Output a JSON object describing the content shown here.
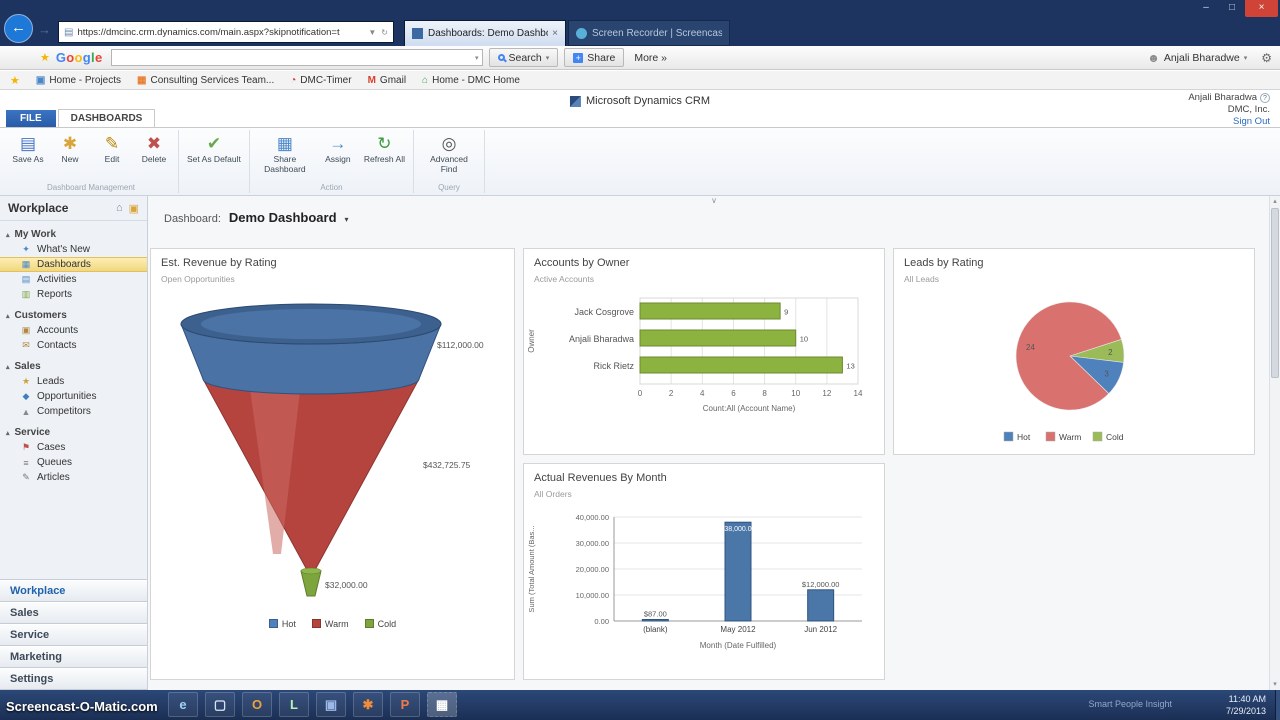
{
  "icons": {
    "back": "←",
    "forward": "→",
    "dropdown": "▼",
    "refresh": "↻",
    "star": "★",
    "caret": "▾",
    "help": "?",
    "avatar": "☻",
    "wrench": "⚙",
    "chevron": "∨",
    "page": "▤",
    "share_plus": "+",
    "home": "⌂",
    "pin": "▣"
  },
  "browser": {
    "url": "https://dmcinc.crm.dynamics.com/main.aspx?skipnotification=t",
    "tabs": [
      {
        "label": "Dashboards: Demo Dashbo..."
      },
      {
        "label": "Screen Recorder | Screencast-..."
      }
    ],
    "window": {
      "minimize": "–",
      "maximize": "□",
      "close": "×"
    }
  },
  "google_toolbar": {
    "logo": "Google",
    "logo_colors": [
      "#4285f4",
      "#ea4335",
      "#fbbc05",
      "#4285f4",
      "#34a853",
      "#ea4335"
    ],
    "search_button": "Search",
    "share_button": "Share",
    "more_button": "More »",
    "user_name": "Anjali Bharadwe"
  },
  "favorites": [
    {
      "label": "Home - Projects",
      "icon": "home-projects"
    },
    {
      "label": "Consulting Services Team...",
      "icon": "team-site"
    },
    {
      "label": "DMC-Timer",
      "icon": "timer"
    },
    {
      "label": "Gmail",
      "icon": "gmail"
    },
    {
      "label": "Home - DMC Home",
      "icon": "dmc-home"
    }
  ],
  "crm_header": {
    "app_title": "Microsoft Dynamics CRM",
    "user_name": "Anjali Bharadwa",
    "organization": "DMC, Inc.",
    "sign_out": "Sign Out"
  },
  "ribbon": {
    "file_tab": "FILE",
    "dashboards_tab": "DASHBOARDS",
    "groups": [
      {
        "label": "Dashboard Management",
        "buttons": [
          {
            "label": "Save As",
            "icon": "▤",
            "color": "#4472c4"
          },
          {
            "label": "New",
            "icon": "✱",
            "color": "#d9a43a"
          },
          {
            "label": "Edit",
            "icon": "✎",
            "color": "#b8860b"
          },
          {
            "label": "Delete",
            "icon": "✖",
            "color": "#c0504d"
          }
        ]
      },
      {
        "label": "",
        "buttons": [
          {
            "label": "Set As Default",
            "icon": "✔",
            "color": "#6aa84f"
          }
        ]
      },
      {
        "label": "Action",
        "buttons": [
          {
            "label": "Share Dashboard",
            "icon": "▦",
            "color": "#4a86c8"
          },
          {
            "label": "Assign",
            "icon": "→",
            "color": "#4a86c8"
          },
          {
            "label": "Refresh All",
            "icon": "↻",
            "color": "#3d9b3d"
          }
        ]
      },
      {
        "label": "Query",
        "buttons": [
          {
            "label": "Advanced Find",
            "icon": "◎",
            "color": "#555555"
          }
        ]
      }
    ]
  },
  "sidebar": {
    "title": "Workplace",
    "sections": [
      {
        "label": "My Work",
        "items": [
          {
            "label": "What's New",
            "icon": "✦"
          },
          {
            "label": "Dashboards",
            "icon": "▦",
            "selected": true
          },
          {
            "label": "Activities",
            "icon": "▤"
          },
          {
            "label": "Reports",
            "icon": "▥"
          }
        ]
      },
      {
        "label": "Customers",
        "items": [
          {
            "label": "Accounts",
            "icon": "▣"
          },
          {
            "label": "Contacts",
            "icon": "✉"
          }
        ]
      },
      {
        "label": "Sales",
        "items": [
          {
            "label": "Leads",
            "icon": "★"
          },
          {
            "label": "Opportunities",
            "icon": "◆"
          },
          {
            "label": "Competitors",
            "icon": "▲"
          }
        ]
      },
      {
        "label": "Service",
        "items": [
          {
            "label": "Cases",
            "icon": "⚑"
          },
          {
            "label": "Queues",
            "icon": "≡"
          },
          {
            "label": "Articles",
            "icon": "✎"
          }
        ]
      }
    ],
    "bottom_nav": [
      {
        "label": "Workplace",
        "active": true
      },
      {
        "label": "Sales"
      },
      {
        "label": "Service"
      },
      {
        "label": "Marketing"
      },
      {
        "label": "Settings"
      }
    ]
  },
  "dashboard_bar": {
    "label": "Dashboard:",
    "value": "Demo Dashboard"
  },
  "chart_data": [
    {
      "type": "funnel",
      "title": "Est. Revenue by Rating",
      "subtitle": "Open Opportunities",
      "segments": [
        {
          "name": "Hot",
          "color": "#4f81bd",
          "value": 112000,
          "label": "$112,000.00"
        },
        {
          "name": "Warm",
          "color": "#b5443f",
          "value": 432725.75,
          "label": "$432,725.75"
        },
        {
          "name": "Cold",
          "color": "#7ea43e",
          "value": 32000,
          "label": "$32,000.00"
        }
      ],
      "legend": [
        "Hot",
        "Warm",
        "Cold"
      ],
      "legend_colors": [
        "#4f81bd",
        "#b5443f",
        "#7ea43e"
      ]
    },
    {
      "type": "bar",
      "orientation": "horizontal",
      "title": "Accounts by Owner",
      "subtitle": "Active Accounts",
      "categories": [
        "Jack Cosgrove",
        "Anjali Bharadwa",
        "Rick Rietz"
      ],
      "values": [
        9,
        10,
        13
      ],
      "xlabel": "Count:All (Account Name)",
      "ylabel": "Owner",
      "xlim": [
        0,
        14
      ],
      "xticks": [
        0,
        2,
        4,
        6,
        8,
        10,
        12,
        14
      ],
      "grid": true,
      "bar_color": "#8cb23f",
      "bar_border": "#6d8b2f"
    },
    {
      "type": "pie",
      "title": "Leads by Rating",
      "subtitle": "All Leads",
      "start_angle": -18,
      "slices": [
        {
          "name": "Cold",
          "value": 2,
          "color": "#9bbb59"
        },
        {
          "name": "Hot",
          "value": 3,
          "color": "#4f81bd"
        },
        {
          "name": "Warm",
          "value": 24,
          "color": "#d9726f"
        }
      ],
      "legend": [
        {
          "name": "Hot",
          "color": "#4f81bd"
        },
        {
          "name": "Warm",
          "color": "#d9726f"
        },
        {
          "name": "Cold",
          "color": "#9bbb59"
        }
      ]
    },
    {
      "type": "bar",
      "orientation": "vertical",
      "title": "Actual Revenues By Month",
      "subtitle": "All Orders",
      "categories": [
        "(blank)",
        "May 2012",
        "Jun 2012"
      ],
      "values": [
        87,
        38000,
        12000
      ],
      "value_labels": [
        "$87.00",
        "$38,000.00",
        "$12,000.00"
      ],
      "xlabel": "Month (Date Fulfilled)",
      "ylabel": "Sum (Total Amount (Bas...",
      "ylim": [
        0,
        40000
      ],
      "ytick_labels": [
        "0.00",
        "10,000.00",
        "20,000.00",
        "30,000.00",
        "40,000.00"
      ],
      "grid": true,
      "bar_color": "#4a76a8",
      "bar_border": "#2f5480"
    }
  ],
  "taskbar": {
    "watermark": "Screencast-O-Matic.com",
    "tagline": "Smart People Insight",
    "time": "11:40 AM",
    "date": "7/29/2013",
    "icons": [
      "internet-explorer",
      "file-explorer",
      "outlook",
      "labview",
      "folder",
      "tools",
      "powerpoint",
      "screen-recorder"
    ]
  }
}
